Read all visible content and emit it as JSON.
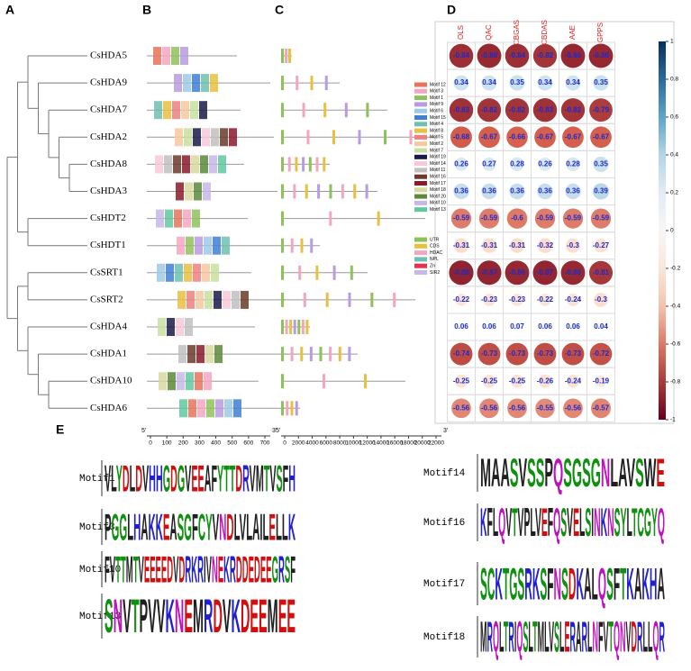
{
  "panels": {
    "a": "A",
    "b": "B",
    "c": "C",
    "d": "D",
    "e": "E"
  },
  "genes": [
    "CsHDA5",
    "CsHDA9",
    "CsHDA7",
    "CsHDA2",
    "CsHDA8",
    "CsHDA3",
    "CsHDT2",
    "CsHDT1",
    "CsSRT1",
    "CsSRT2",
    "CsHDA4",
    "CsHDA1",
    "CsHDA10",
    "CsHDA6"
  ],
  "protein_axis": {
    "start": "5'",
    "end": "3'",
    "ticks": [
      0,
      100,
      200,
      300,
      400,
      500,
      600,
      700
    ]
  },
  "gene_axis": {
    "start": "5'",
    "end": "3'",
    "ticks": [
      0,
      2000,
      4000,
      6000,
      8000,
      10000,
      12000,
      14000,
      16000,
      18000,
      20000,
      22000
    ]
  },
  "motif_legend": [
    "Motif 12",
    "Motif 3",
    "Motif 1",
    "Motif 9",
    "Motif 6",
    "Motif 15",
    "Motif 4",
    "Motif 8",
    "Motif 5",
    "Motif 2",
    "Motif 7",
    "Motif 19",
    "Motif 14",
    "Motif 11",
    "Motif 16",
    "Motif 17",
    "Motif 18",
    "Motif 20",
    "Motif 10",
    "Motif 13"
  ],
  "domain_legend": [
    "UTR",
    "CDS",
    "HDAC",
    "NPL",
    "Zn",
    "SIR2"
  ],
  "correlation": {
    "columns": [
      "OLS",
      "QAC",
      "CBGAS",
      "CBDAS",
      "AAE",
      "GPPS"
    ],
    "rows": [
      [
        -0.84,
        -0.86,
        -0.84,
        -0.82,
        -0.86,
        -0.86
      ],
      [
        0.34,
        0.34,
        0.35,
        0.34,
        0.34,
        0.35
      ],
      [
        -0.83,
        -0.82,
        -0.82,
        -0.83,
        -0.82,
        -0.79
      ],
      [
        -0.68,
        -0.67,
        -0.66,
        -0.67,
        -0.67,
        -0.67
      ],
      [
        0.26,
        0.27,
        0.28,
        0.26,
        0.28,
        0.35
      ],
      [
        0.36,
        0.36,
        0.36,
        0.36,
        0.36,
        0.39
      ],
      [
        -0.59,
        -0.59,
        -0.6,
        -0.59,
        -0.59,
        -0.59
      ],
      [
        -0.31,
        -0.31,
        -0.31,
        -0.32,
        -0.3,
        -0.27
      ],
      [
        -0.88,
        -0.87,
        -0.86,
        -0.87,
        -0.86,
        -0.81
      ],
      [
        -0.22,
        -0.23,
        -0.23,
        -0.22,
        -0.24,
        -0.3
      ],
      [
        0.06,
        0.06,
        0.07,
        0.06,
        0.06,
        0.04
      ],
      [
        -0.74,
        -0.73,
        -0.73,
        -0.73,
        -0.73,
        -0.72
      ],
      [
        -0.25,
        -0.25,
        -0.25,
        -0.26,
        -0.24,
        -0.19
      ],
      [
        -0.56,
        -0.56,
        -0.56,
        -0.55,
        -0.56,
        -0.57
      ]
    ],
    "lim": [
      -1,
      1
    ],
    "colorbar_ticks": [
      1,
      0.8,
      0.6,
      0.4,
      0.2,
      0,
      -0.2,
      -0.4,
      -0.6,
      -0.8,
      -1
    ]
  },
  "motifs": [
    {
      "name": "Motif1",
      "sequence": "VLYDLDVHHGDGVEEAFYTTDRVMTVSFH"
    },
    {
      "name": "Motif3",
      "sequence": "PGGLHAKKEASGFCYVNDLVLAILELLK"
    },
    {
      "name": "Motif10",
      "sequence": "FVTTMTVEEEEDVDRKRIVNEKRDDEDEEGRSF"
    },
    {
      "name": "Motif13",
      "sequence": "SNVTPVVKNEMRDVKDEEMEE"
    },
    {
      "name": "Motif14",
      "sequence": "MAASVSSPQSGSGNLAVSWE"
    },
    {
      "name": "Motif16",
      "sequence": "KFLQVTVPLVEFQSVELSINKNSYLTCGYQ"
    },
    {
      "name": "Motif17",
      "sequence": "SCKTGSRKSFNSDKALQSFTKAKHA"
    },
    {
      "name": "Motif18",
      "sequence": "MRQLTRIQSLTMLVSLERARLNFVTQNVDRLLQR"
    }
  ]
}
